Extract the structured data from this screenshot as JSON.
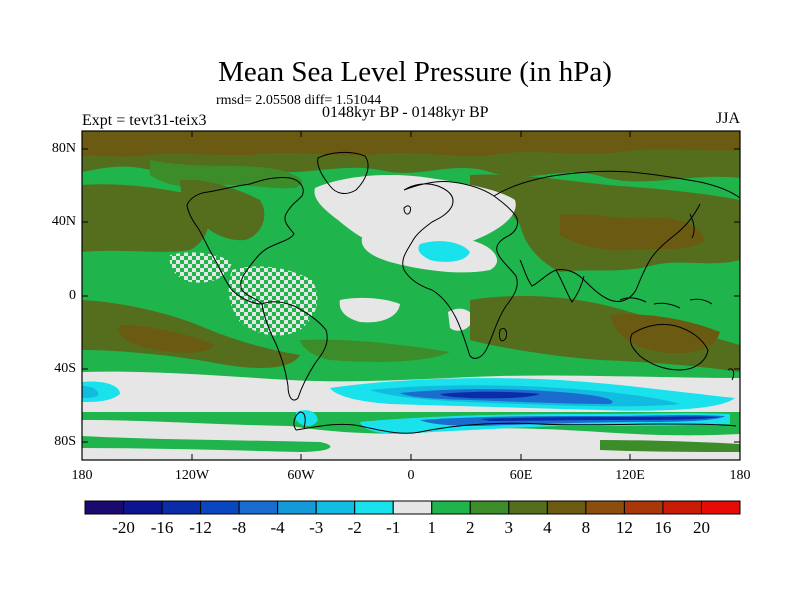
{
  "title": "Mean Sea Level Pressure (in hPa)",
  "stats": "rmsd= 2.05508 diff= 1.51044",
  "period": "0148kyr BP - 0148kyr BP",
  "experiment": "Expt = tevt31-teix3",
  "season": "JJA",
  "axes": {
    "lat_labels": [
      "80N",
      "40N",
      "0",
      "40S",
      "80S"
    ],
    "lon_labels": [
      "180",
      "120W",
      "60W",
      "0",
      "60E",
      "120E",
      "180"
    ]
  },
  "colorbar": {
    "labels": [
      "-20",
      "-16",
      "-12",
      "-8",
      "-4",
      "-3",
      "-2",
      "-1",
      "1",
      "2",
      "3",
      "4",
      "8",
      "12",
      "16",
      "20"
    ],
    "colors": [
      "#1a0a6e",
      "#0d148f",
      "#0a2ca8",
      "#0a46c0",
      "#1b6ccf",
      "#1599d8",
      "#12bce0",
      "#19e2ec",
      "#e6e6e6",
      "#20b44c",
      "#3d8c2a",
      "#546e1e",
      "#6b5a12",
      "#8c4e0e",
      "#a8380a",
      "#c81c06",
      "#e60c06"
    ]
  },
  "palette": {
    "green": "#20b44c",
    "darkgreen": "#3d8c2a",
    "olive": "#546e1e",
    "brown": "#6b5a12",
    "white": "#e6e6e6",
    "cyan": "#19e2ec",
    "lightblue": "#12bce0",
    "blue": "#1b6ccf",
    "darkblue": "#0a2ca8"
  }
}
